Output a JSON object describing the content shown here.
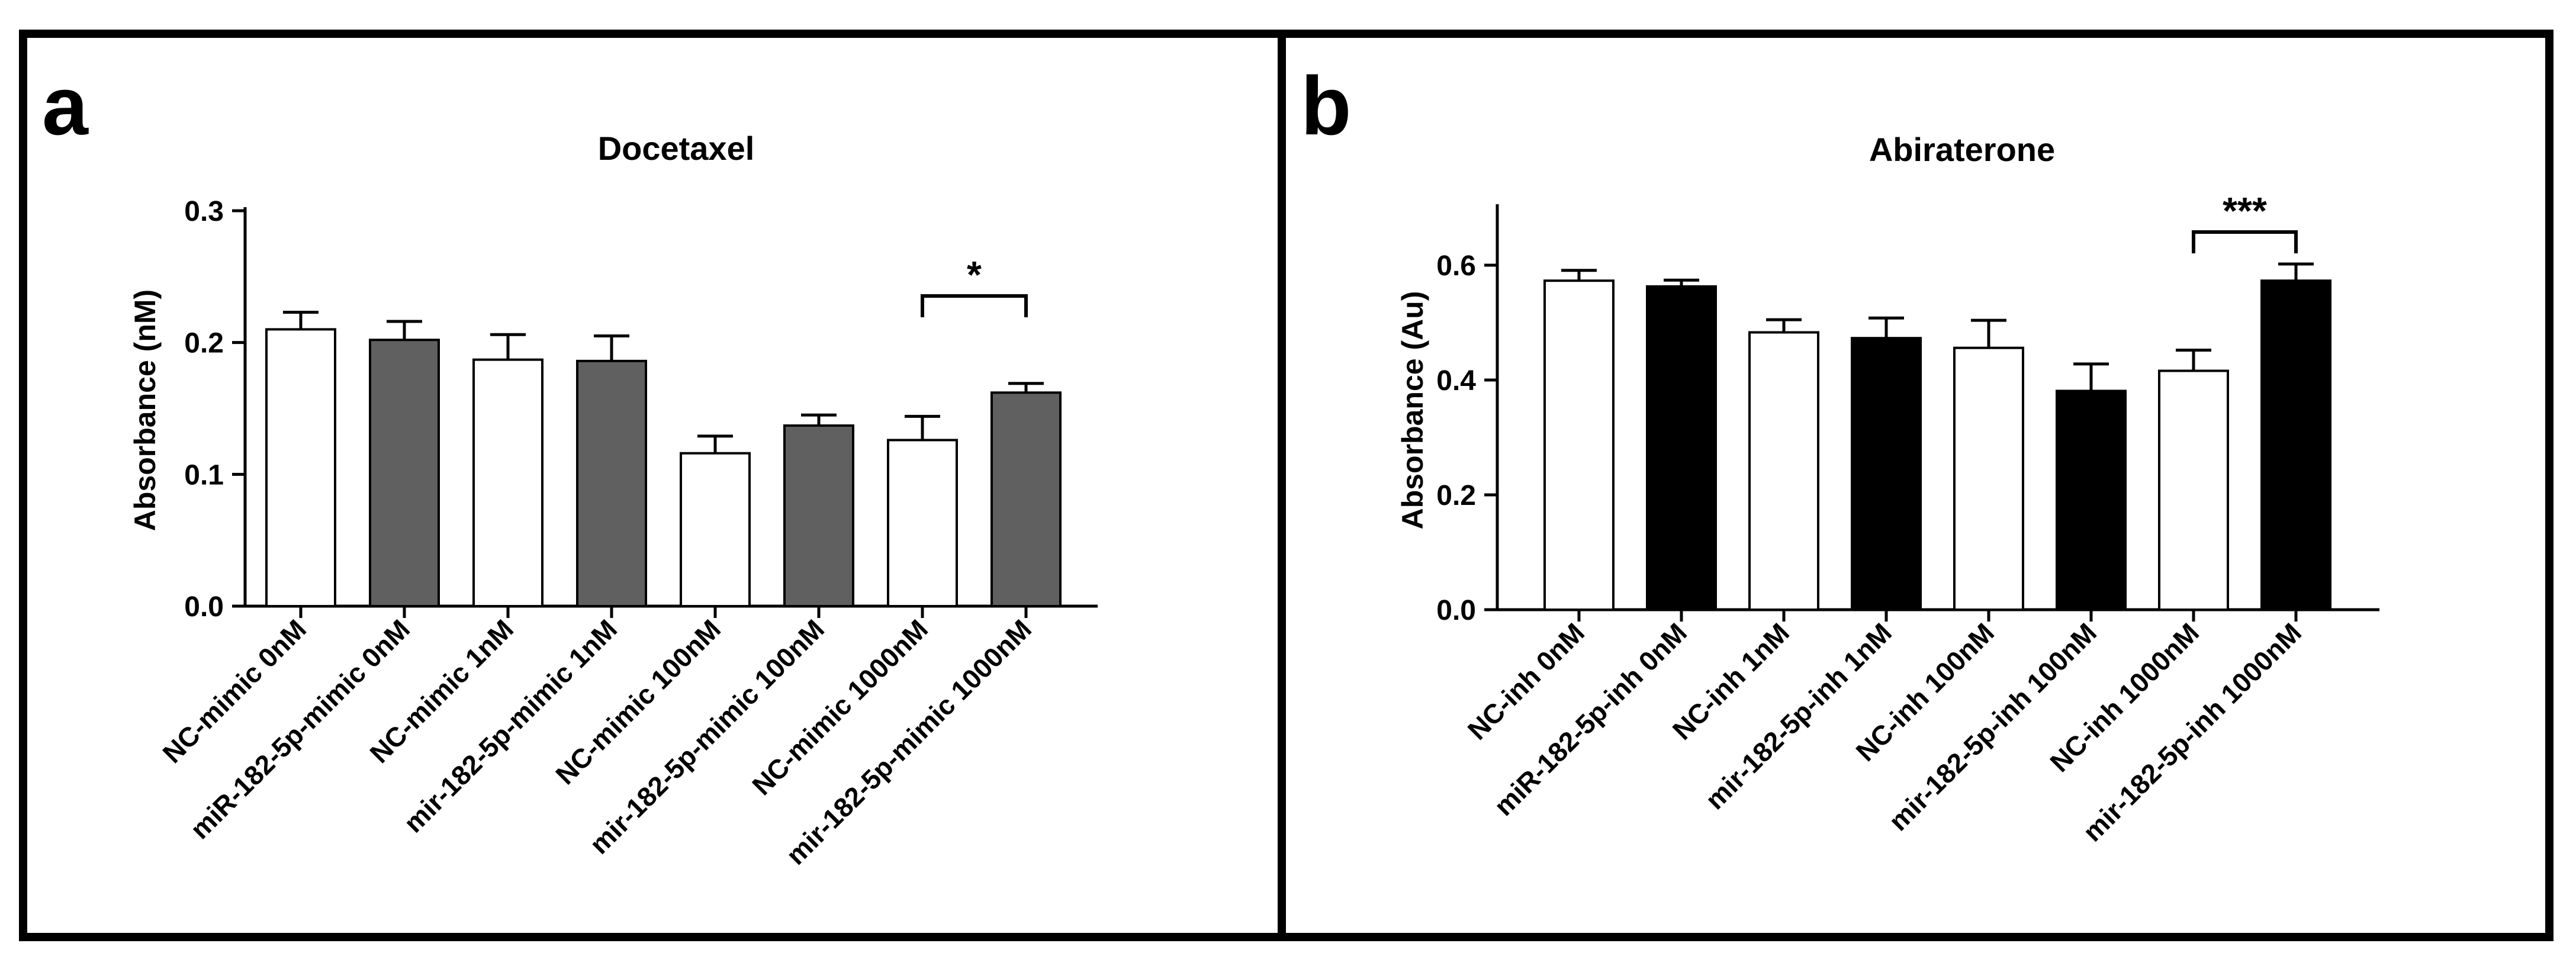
{
  "panels": [
    {
      "letter": "a"
    },
    {
      "letter": "b"
    }
  ],
  "chart_data": [
    {
      "type": "bar",
      "title": "Docetaxel",
      "xlabel": "",
      "ylabel": "Absorbance (nM)",
      "ylim": [
        0,
        0.3
      ],
      "yticks": [
        0.0,
        0.1,
        0.2,
        0.3
      ],
      "ytick_labels": [
        "0.0",
        "0.1",
        "0.2",
        "0.3"
      ],
      "categories": [
        "NC-mimic 0nM",
        "miR-182-5p-mimic 0nM",
        "NC-mimic 1nM",
        "mir-182-5p-mimic 1nM",
        "NC-mimic 100nM",
        "mir-182-5p-mimic 100nM",
        "NC-mimic 1000nM",
        "mir-182-5p-mimic 1000nM"
      ],
      "values": [
        0.21,
        0.202,
        0.187,
        0.186,
        0.116,
        0.137,
        0.126,
        0.162
      ],
      "errors": [
        0.013,
        0.014,
        0.019,
        0.019,
        0.013,
        0.008,
        0.018,
        0.007
      ],
      "bar_colors": [
        "#ffffff",
        "#606060",
        "#ffffff",
        "#606060",
        "#ffffff",
        "#606060",
        "#ffffff",
        "#606060"
      ],
      "annotations": [
        {
          "from": 6,
          "to": 7,
          "text": "*"
        }
      ]
    },
    {
      "type": "bar",
      "title": "Abiraterone",
      "xlabel": "",
      "ylabel": "Absorbance (Au)",
      "ylim": [
        0,
        0.7
      ],
      "yticks": [
        0.0,
        0.2,
        0.4,
        0.6
      ],
      "ytick_labels": [
        "0.0",
        "0.2",
        "0.4",
        "0.6"
      ],
      "categories": [
        "NC-inh 0nM",
        "miR-182-5p-inh 0nM",
        "NC-inh 1nM",
        "mir-182-5p-inh 1nM",
        "NC-inh 100nM",
        "mir-182-5p-inh 100nM",
        "NC-inh 1000nM",
        "mir-182-5p-inh 1000nM"
      ],
      "values": [
        0.573,
        0.563,
        0.483,
        0.473,
        0.456,
        0.381,
        0.416,
        0.573
      ],
      "errors": [
        0.018,
        0.011,
        0.022,
        0.035,
        0.048,
        0.047,
        0.036,
        0.029
      ],
      "bar_colors": [
        "#ffffff",
        "#000000",
        "#ffffff",
        "#000000",
        "#ffffff",
        "#000000",
        "#ffffff",
        "#000000"
      ],
      "annotations": [
        {
          "from": 6,
          "to": 7,
          "text": "***"
        }
      ]
    }
  ]
}
